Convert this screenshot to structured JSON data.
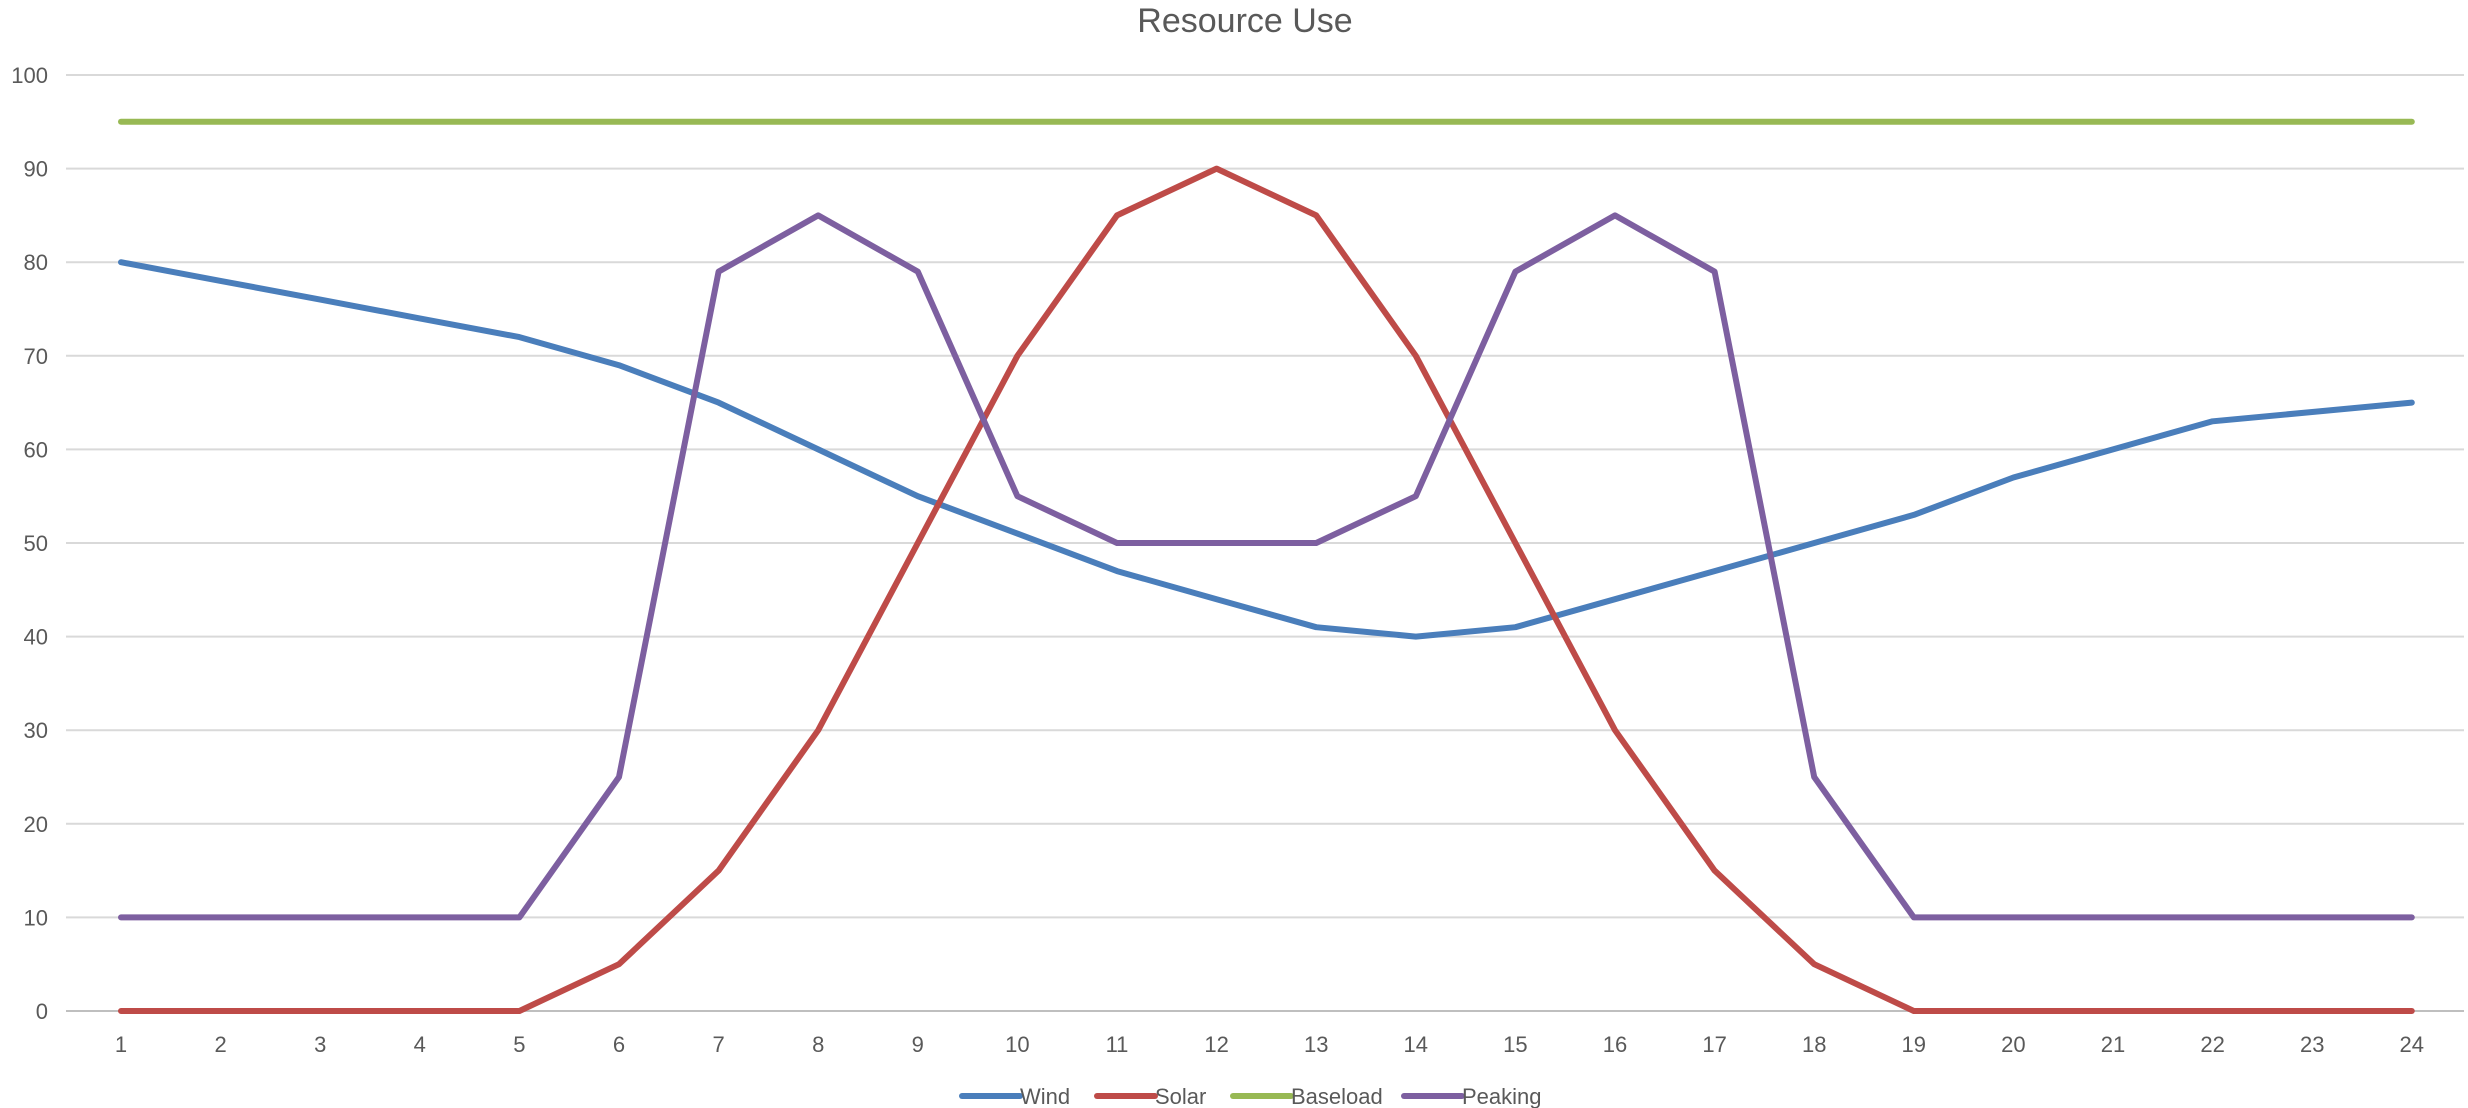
{
  "chart_data": {
    "type": "line",
    "title": "Resource Use",
    "xlabel": "",
    "ylabel": "",
    "x": [
      1,
      2,
      3,
      4,
      5,
      6,
      7,
      8,
      9,
      10,
      11,
      12,
      13,
      14,
      15,
      16,
      17,
      18,
      19,
      20,
      21,
      22,
      23,
      24
    ],
    "x_tick_labels": [
      "1",
      "2",
      "3",
      "4",
      "5",
      "6",
      "7",
      "8",
      "9",
      "10",
      "11",
      "12",
      "13",
      "14",
      "15",
      "16",
      "17",
      "18",
      "19",
      "20",
      "21",
      "22",
      "23",
      "24"
    ],
    "y_tick_labels": [
      "0",
      "10",
      "20",
      "30",
      "40",
      "50",
      "60",
      "70",
      "80",
      "90",
      "100"
    ],
    "ylim": [
      0,
      100
    ],
    "grid": true,
    "legend_position": "bottom",
    "series": [
      {
        "name": "Wind",
        "color": "#4a7ebb",
        "values": [
          80,
          78,
          76,
          74,
          72,
          69,
          65,
          60,
          55,
          51,
          47,
          44,
          41,
          40,
          41,
          44,
          47,
          50,
          53,
          57,
          60,
          63,
          64,
          65
        ]
      },
      {
        "name": "Solar",
        "color": "#be4b48",
        "values": [
          0,
          0,
          0,
          0,
          0,
          5,
          15,
          30,
          50,
          70,
          85,
          90,
          85,
          70,
          50,
          30,
          15,
          5,
          0,
          0,
          0,
          0,
          0,
          0
        ]
      },
      {
        "name": "Baseload",
        "color": "#98b954",
        "values": [
          95,
          95,
          95,
          95,
          95,
          95,
          95,
          95,
          95,
          95,
          95,
          95,
          95,
          95,
          95,
          95,
          95,
          95,
          95,
          95,
          95,
          95,
          95,
          95
        ]
      },
      {
        "name": "Peaking",
        "color": "#7d5fa0",
        "values": [
          10,
          10,
          10,
          10,
          10,
          25,
          79,
          85,
          79,
          55,
          50,
          50,
          50,
          55,
          79,
          85,
          79,
          25,
          10,
          10,
          10,
          10,
          10,
          10
        ]
      }
    ]
  }
}
